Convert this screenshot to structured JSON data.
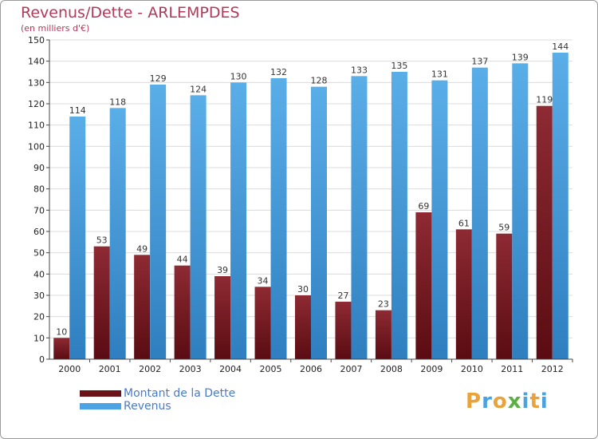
{
  "chart_data": {
    "type": "bar",
    "title": "Revenus/Dette - ARLEMPDES",
    "subtitle": "(en milliers d'€)",
    "categories": [
      "2000",
      "2001",
      "2002",
      "2003",
      "2004",
      "2005",
      "2006",
      "2007",
      "2008",
      "2009",
      "2010",
      "2011",
      "2012"
    ],
    "series": [
      {
        "name": "Montant de la Dette",
        "color": "#7a1a22",
        "values": [
          10,
          53,
          49,
          44,
          39,
          34,
          30,
          27,
          23,
          69,
          61,
          59,
          119
        ]
      },
      {
        "name": "Revenus",
        "color": "#4ba3e3",
        "values": [
          114,
          118,
          129,
          124,
          130,
          132,
          128,
          133,
          135,
          131,
          137,
          139,
          144
        ]
      }
    ],
    "ylim": [
      0,
      150
    ],
    "yticks": [
      0,
      10,
      20,
      30,
      40,
      50,
      60,
      70,
      80,
      90,
      100,
      110,
      120,
      130,
      140,
      150
    ],
    "grid": true,
    "legend_position": "bottom-left"
  },
  "logo": {
    "letters": [
      "P",
      "r",
      "o",
      "x",
      "i",
      "t",
      "i"
    ],
    "colors": [
      "#e8a33a",
      "#4aa3df",
      "#e8a33a",
      "#5bb043",
      "#4aa3df",
      "#e8a33a",
      "#4aa3df"
    ]
  }
}
